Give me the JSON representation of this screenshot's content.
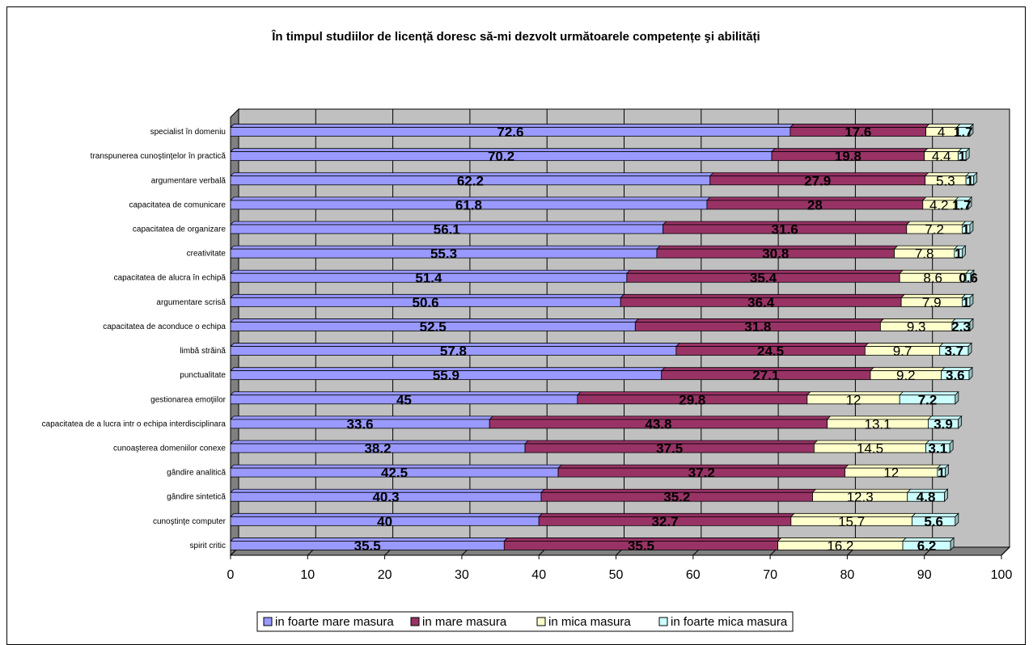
{
  "chart_data": {
    "type": "bar",
    "orientation": "horizontal",
    "stacked": true,
    "title": "În timpul studiilor de licență doresc să-mi dezvolt următoarele competențe şi abilități",
    "xlabel": "",
    "ylabel": "",
    "xlim": [
      0,
      100
    ],
    "x_ticks": [
      "0",
      "10",
      "20",
      "30",
      "40",
      "50",
      "60",
      "70",
      "80",
      "90",
      "100"
    ],
    "grid": true,
    "legend_position": "bottom",
    "categories": [
      "specialist în domeniu",
      "transpunerea cunoştinţelor în practică",
      "argumentare verbală",
      "capacitatea de comunicare",
      "capacitatea de organizare",
      "creativitate",
      "capacitatea de alucra în echipă",
      "argumentare scrisă",
      "capacitatea de aconduce o echipa",
      "limbă străină",
      "punctualitate",
      "gestionarea emoţiilor",
      "capacitatea de a lucra intr o echipa interdisciplinara",
      "cunoaşterea domeniilor conexe",
      "gândire analitică",
      "gândire sintetică",
      "cunoştinţe computer",
      "spirit critic"
    ],
    "series": [
      {
        "name": "in foarte mare masura",
        "color": "#9999ff",
        "values": [
          72.6,
          70.2,
          62.2,
          61.8,
          56.1,
          55.3,
          51.4,
          50.6,
          52.5,
          57.8,
          55.9,
          45,
          33.6,
          38.2,
          42.5,
          40.3,
          40,
          35.5
        ],
        "labels": [
          "72.6",
          "70.2",
          "62.2",
          "61.8",
          "56.1",
          "55.3",
          "51.4",
          "50.6",
          "52.5",
          "57.8",
          "55.9",
          "45",
          "33.6",
          "38.2",
          "42.5",
          "40.3",
          "40",
          "35.5"
        ]
      },
      {
        "name": "in mare masura",
        "color": "#993366",
        "values": [
          17.6,
          19.8,
          27.9,
          28,
          31.6,
          30.8,
          35.4,
          36.4,
          31.8,
          24.5,
          27.1,
          29.8,
          43.8,
          37.5,
          37.2,
          35.2,
          32.7,
          35.5
        ],
        "labels": [
          "17.6",
          "19.8",
          "27.9",
          "28",
          "31.6",
          "30.8",
          "35.4",
          "36.4",
          "31.8",
          "24.5",
          "27.1",
          "29.8",
          "43.8",
          "37.5",
          "37.2",
          "35.2",
          "32.7",
          "35.5"
        ]
      },
      {
        "name": "in mica masura",
        "color": "#ffffcc",
        "values": [
          4,
          4.4,
          5.3,
          4.2,
          7.2,
          7.8,
          8.6,
          7.9,
          9.3,
          9.7,
          9.2,
          12,
          13.1,
          14.5,
          12,
          12.3,
          15.7,
          16.2
        ],
        "labels": [
          "4",
          "4.4",
          "5.3",
          "4.2",
          "7.2",
          "7.8",
          "8.6",
          "7.9",
          "9.3",
          "9.7",
          "9.2",
          "12",
          "13.1",
          "14.5",
          "12",
          "12.3",
          "15.7",
          "16.2"
        ]
      },
      {
        "name": "in foarte mica masura",
        "color": "#ccffff",
        "values": [
          1.7,
          1,
          1,
          1.7,
          1,
          1,
          0.6,
          1,
          2.3,
          3.7,
          3.6,
          7.2,
          3.9,
          3.1,
          1,
          4.8,
          5.6,
          6.2
        ],
        "labels": [
          "1.7",
          "1",
          "1",
          "1.7",
          "1",
          "1",
          "0.6",
          "1",
          "2.3",
          "3.7",
          "3.6",
          "7.2",
          "3.9",
          "3.1",
          "1",
          "4.8",
          "5.6",
          "6.2"
        ]
      }
    ],
    "colors": {
      "plot_wall": "#c0c0c0",
      "plot_floor": "#808080",
      "gridline": "#000000"
    }
  }
}
